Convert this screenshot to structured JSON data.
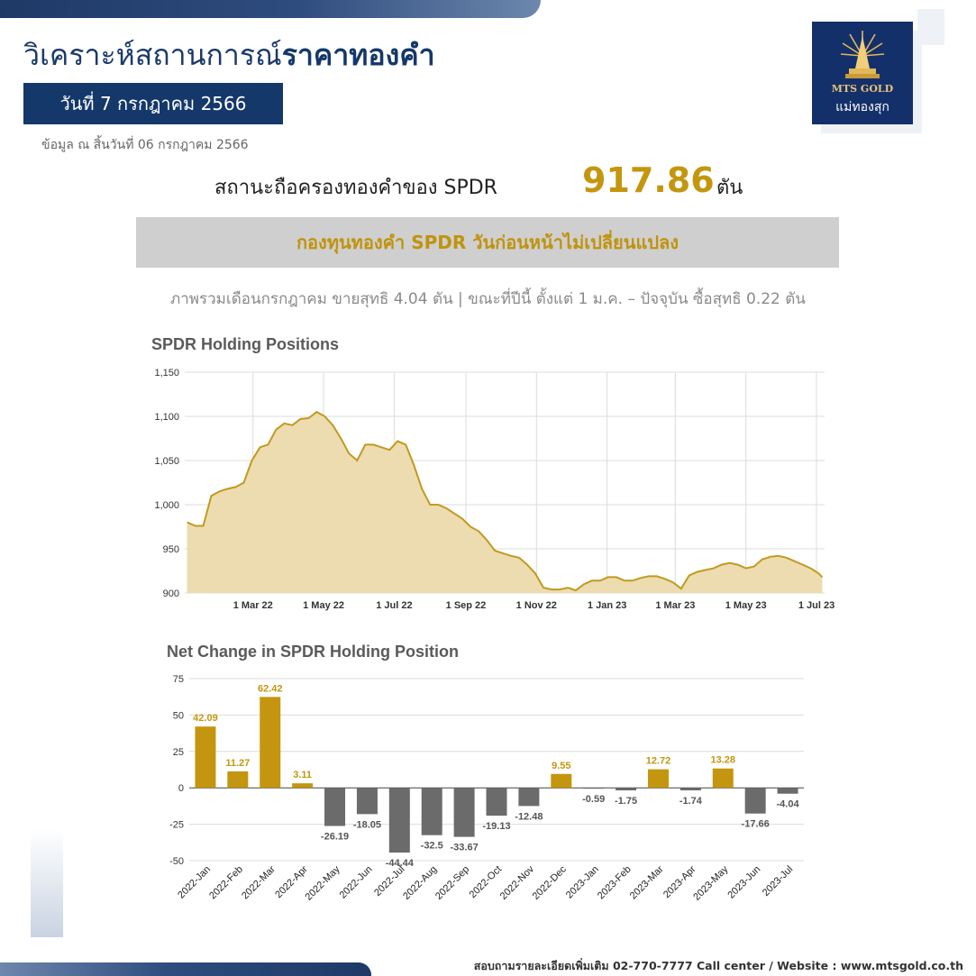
{
  "header": {
    "title_regular": "วิเคราะห์สถานการณ์",
    "title_bold": "ราคาทองคำ",
    "date_badge": "วันที่ 7 กรกฎาคม 2566",
    "as_of": "ข้อมูล ณ สิ้นวันที่ 06 กรกฎาคม 2566"
  },
  "logo": {
    "line1": "MTS GOLD",
    "line2": "แม่ทองสุก"
  },
  "holding": {
    "label": "สถานะถือครองทองคำของ SPDR",
    "value": "917.86",
    "unit": "ตัน"
  },
  "status": "กองทุนทองคำ SPDR วันก่อนหน้าไม่เปลี่ยนแปลง",
  "summary": "ภาพรวมเดือนกรกฎาคม ขายสุทธิ 4.04 ตัน | ขณะที่ปีนี้ ตั้งแต่ 1 ม.ค. – ปัจจุบัน ซื้อสุทธิ 0.22 ตัน",
  "footer": "สอบถามรายละเอียดเพิ่มเติม 02-770-7777 Call center / Website : www.mtsgold.co.th",
  "colors": {
    "navy": "#15386a",
    "gold": "#c4960f",
    "area_fill": "#ecdcb0",
    "area_line": "#c29a20",
    "neg_bar": "#6b6b6b"
  },
  "chart_data": [
    {
      "type": "area",
      "title": "SPDR Holding Positions",
      "xlabel": "",
      "ylabel": "",
      "ylim": [
        900,
        1150
      ],
      "yticks": [
        "900",
        "950",
        "1,000",
        "1,050",
        "1,100",
        "1,150"
      ],
      "xticks": [
        "1 Mar 22",
        "1 May 22",
        "1 Jul 22",
        "1 Sep 22",
        "1 Nov 22",
        "1 Jan 23",
        "1 Mar 23",
        "1 May 23",
        "1 Jul 23"
      ],
      "grid": true,
      "x": [
        "2022-01-03",
        "2022-01-10",
        "2022-01-17",
        "2022-01-24",
        "2022-01-31",
        "2022-02-07",
        "2022-02-14",
        "2022-02-21",
        "2022-02-28",
        "2022-03-07",
        "2022-03-14",
        "2022-03-21",
        "2022-03-28",
        "2022-04-04",
        "2022-04-11",
        "2022-04-18",
        "2022-04-25",
        "2022-05-02",
        "2022-05-09",
        "2022-05-16",
        "2022-05-23",
        "2022-05-30",
        "2022-06-06",
        "2022-06-13",
        "2022-06-20",
        "2022-06-27",
        "2022-07-04",
        "2022-07-11",
        "2022-07-18",
        "2022-07-25",
        "2022-08-01",
        "2022-08-08",
        "2022-08-15",
        "2022-08-22",
        "2022-08-29",
        "2022-09-05",
        "2022-09-12",
        "2022-09-19",
        "2022-09-26",
        "2022-10-03",
        "2022-10-10",
        "2022-10-17",
        "2022-10-24",
        "2022-10-31",
        "2022-11-07",
        "2022-11-14",
        "2022-11-21",
        "2022-11-28",
        "2022-12-05",
        "2022-12-12",
        "2022-12-19",
        "2022-12-26",
        "2023-01-02",
        "2023-01-09",
        "2023-01-16",
        "2023-01-23",
        "2023-01-30",
        "2023-02-06",
        "2023-02-13",
        "2023-02-20",
        "2023-02-27",
        "2023-03-06",
        "2023-03-13",
        "2023-03-20",
        "2023-03-27",
        "2023-04-03",
        "2023-04-10",
        "2023-04-17",
        "2023-04-24",
        "2023-05-01",
        "2023-05-08",
        "2023-05-15",
        "2023-05-22",
        "2023-05-29",
        "2023-06-05",
        "2023-06-12",
        "2023-06-19",
        "2023-06-26",
        "2023-07-03",
        "2023-07-06"
      ],
      "values": [
        980,
        976,
        976,
        1010,
        1015,
        1018,
        1020,
        1025,
        1050,
        1065,
        1068,
        1085,
        1092,
        1090,
        1097,
        1098,
        1105,
        1100,
        1090,
        1075,
        1058,
        1050,
        1068,
        1068,
        1065,
        1062,
        1072,
        1068,
        1045,
        1018,
        1000,
        1000,
        996,
        990,
        984,
        975,
        970,
        960,
        948,
        945,
        942,
        940,
        932,
        922,
        906,
        904,
        904,
        906,
        903,
        910,
        914,
        914,
        918,
        918,
        914,
        914,
        917,
        919,
        919,
        916,
        912,
        905,
        920,
        924,
        926,
        928,
        932,
        934,
        932,
        928,
        930,
        938,
        941,
        942,
        940,
        936,
        932,
        928,
        922,
        917.86
      ]
    },
    {
      "type": "bar",
      "title": "Net Change in SPDR Holding Position",
      "xlabel": "",
      "ylabel": "",
      "ylim": [
        -50,
        75
      ],
      "yticks": [
        "-50",
        "-25",
        "0",
        "25",
        "50",
        "75"
      ],
      "grid": true,
      "categories": [
        "2022-Jan",
        "2022-Feb",
        "2022-Mar",
        "2022-Apr",
        "2022-May",
        "2022-Jun",
        "2022-Jul",
        "2022-Aug",
        "2022-Sep",
        "2022-Oct",
        "2022-Nov",
        "2022-Dec",
        "2023-Jan",
        "2023-Feb",
        "2023-Mar",
        "2023-Apr",
        "2023-May",
        "2023-Jun",
        "2023-Jul"
      ],
      "values": [
        42.09,
        11.27,
        62.42,
        3.11,
        -26.19,
        -18.05,
        -44.44,
        -32.5,
        -33.67,
        -19.13,
        -12.48,
        9.55,
        -0.59,
        -1.75,
        12.72,
        -1.74,
        13.28,
        -17.66,
        -4.04
      ],
      "labels": [
        "42.09",
        "11.27",
        "62.42",
        "3.11",
        "-26.19",
        "-18.05",
        "-44.44",
        "-32.5",
        "-33.67",
        "-19.13",
        "-12.48",
        "9.55",
        "-0.59",
        "-1.75",
        "12.72",
        "-1.74",
        "13.28",
        "-17.66",
        "-4.04"
      ]
    }
  ]
}
